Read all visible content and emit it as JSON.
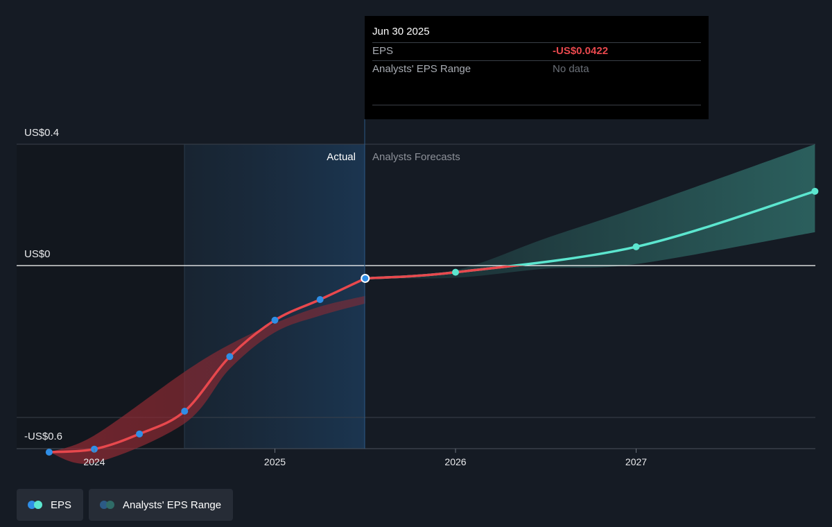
{
  "chart_data": {
    "type": "line",
    "ylabels": [
      "US$0.4",
      "US$0",
      "-US$0.6"
    ],
    "x_ticks": [
      "2024",
      "2025",
      "2026",
      "2027"
    ],
    "region_labels": {
      "actual": "Actual",
      "forecast": "Analysts Forecasts"
    },
    "series": [
      {
        "name": "EPS",
        "kind": "actual",
        "x": [
          2023.75,
          2024.0,
          2024.25,
          2024.5,
          2024.75,
          2025.0,
          2025.25,
          2025.5
        ],
        "y": [
          -0.615,
          -0.605,
          -0.555,
          -0.48,
          -0.3,
          -0.18,
          -0.112,
          -0.0422
        ]
      },
      {
        "name": "EPS",
        "kind": "forecast",
        "x": [
          2025.5,
          2026.0,
          2027.0,
          2027.99
        ],
        "y": [
          -0.0422,
          -0.022,
          0.062,
          0.245
        ]
      }
    ],
    "range_past": {
      "x": [
        2023.75,
        2024.0,
        2024.5,
        2024.75,
        2025.0,
        2025.25,
        2025.5
      ],
      "low": [
        -0.615,
        -0.65,
        -0.52,
        -0.34,
        -0.22,
        -0.165,
        -0.125
      ],
      "high": [
        -0.615,
        -0.56,
        -0.35,
        -0.26,
        -0.19,
        -0.135,
        -0.1
      ]
    },
    "range_forecast": {
      "x": [
        2025.5,
        2026.0,
        2026.5,
        2027.0,
        2027.99
      ],
      "low": [
        -0.0422,
        -0.04,
        -0.01,
        0.005,
        0.11
      ],
      "high": [
        -0.0422,
        -0.015,
        0.09,
        0.19,
        0.4
      ]
    },
    "tooltip_x": 2025.5,
    "x_range": [
      2023.32,
      2027.99
    ],
    "y_range": [
      -0.72,
      0.4
    ],
    "colors": {
      "actual_line": "#e8484d",
      "actual_dot": "#2f8ee6",
      "forecast_line": "#5ce6cf",
      "range_past": "#8f2a33",
      "range_forecast": "#2f6b67",
      "highlight": "#1a2d40"
    }
  },
  "tooltip": {
    "date": "Jun 30 2025",
    "rows": [
      {
        "label": "EPS",
        "value": "-US$0.0422"
      },
      {
        "label": "Analysts' EPS Range",
        "value": "No data"
      }
    ]
  },
  "legend": [
    {
      "label": "EPS",
      "icon": "eps-dots-icon",
      "colors": [
        "#2f8ee6",
        "#5ce6cf"
      ]
    },
    {
      "label": "Analysts' EPS Range",
      "icon": "range-dots-icon",
      "colors": [
        "#2c5a86",
        "#2f6b67"
      ]
    }
  ]
}
